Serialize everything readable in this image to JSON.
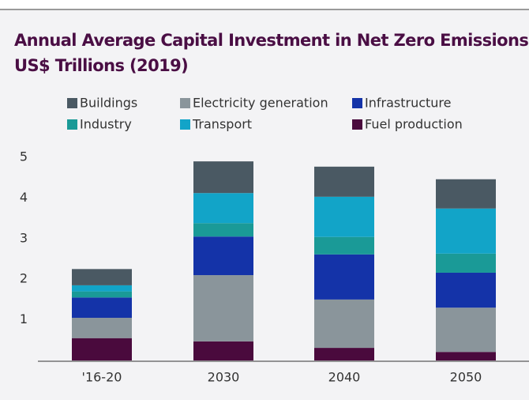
{
  "chart_data": {
    "type": "stacked_bar",
    "title": "Annual Average Capital Investment in Net Zero Emissions,",
    "subtitle": "US$ Trillions (2019)",
    "categories": [
      "'16-20",
      "2030",
      "2040",
      "2050"
    ],
    "series": [
      {
        "name": "Fuel production",
        "color": "#4a0a3d",
        "values": [
          0.55,
          0.47,
          0.31,
          0.21
        ]
      },
      {
        "name": "Electricity generation",
        "color": "#8a959b",
        "values": [
          0.5,
          1.63,
          1.19,
          1.09
        ]
      },
      {
        "name": "Infrastructure",
        "color": "#1433a8",
        "values": [
          0.5,
          0.95,
          1.11,
          0.86
        ]
      },
      {
        "name": "Industry",
        "color": "#1a9a97",
        "values": [
          0.15,
          0.33,
          0.43,
          0.47
        ]
      },
      {
        "name": "Transport",
        "color": "#12a4c8",
        "values": [
          0.15,
          0.74,
          0.99,
          1.11
        ]
      },
      {
        "name": "Buildings",
        "color": "#4a5963",
        "values": [
          0.4,
          0.78,
          0.74,
          0.72
        ]
      }
    ],
    "ylim": [
      0,
      5
    ],
    "yticks": [
      1,
      2,
      3,
      4,
      5
    ],
    "grid": false
  }
}
